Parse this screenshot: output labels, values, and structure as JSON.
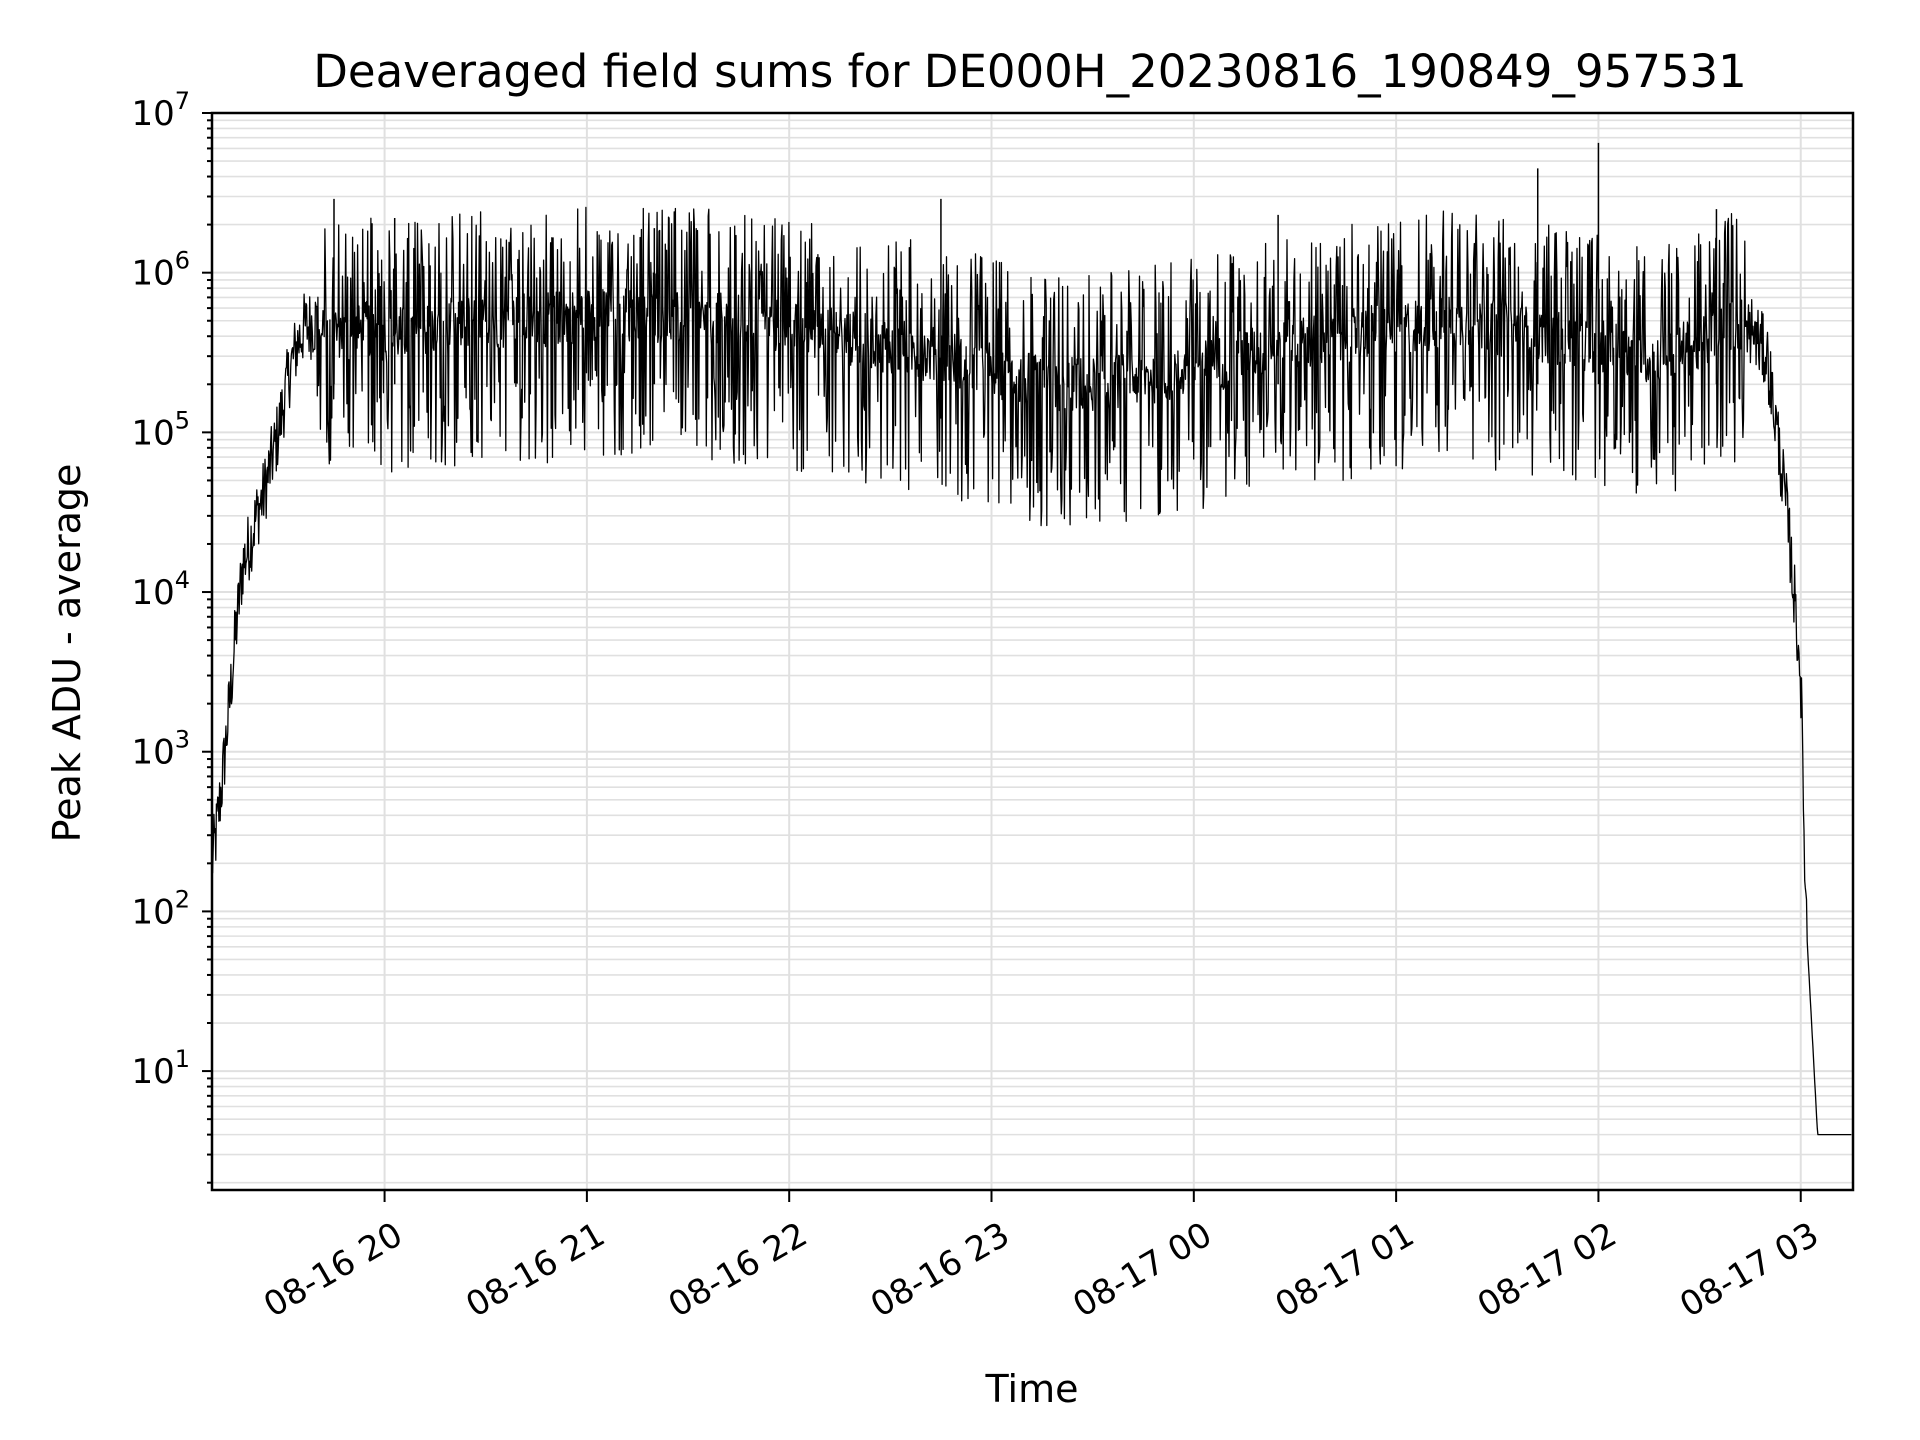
{
  "chart_data": {
    "type": "line",
    "title": "Deaveraged field sums for DE000H_20230816_190849_957531",
    "xlabel": "Time",
    "ylabel": "Peak ADU - average",
    "yscale": "log",
    "ylim": [
      1.8,
      10000000
    ],
    "xlim": [
      "2023-08-16 19:08:49",
      "2023-08-17 03:15:30"
    ],
    "grid": true,
    "grid_color": "#e0e0e0",
    "line_color": "#000000",
    "x_ticks": [
      {
        "label": "08-16 20",
        "time": "2023-08-16 20:00"
      },
      {
        "label": "08-16 21",
        "time": "2023-08-16 21:00"
      },
      {
        "label": "08-16 22",
        "time": "2023-08-16 22:00"
      },
      {
        "label": "08-16 23",
        "time": "2023-08-16 23:00"
      },
      {
        "label": "08-17 00",
        "time": "2023-08-17 00:00"
      },
      {
        "label": "08-17 01",
        "time": "2023-08-17 01:00"
      },
      {
        "label": "08-17 02",
        "time": "2023-08-17 02:00"
      },
      {
        "label": "08-17 03",
        "time": "2023-08-17 03:00"
      }
    ],
    "y_ticks": [
      {
        "base": "10",
        "exp": "1",
        "value": 10
      },
      {
        "base": "10",
        "exp": "2",
        "value": 100
      },
      {
        "base": "10",
        "exp": "3",
        "value": 1000
      },
      {
        "base": "10",
        "exp": "4",
        "value": 10000
      },
      {
        "base": "10",
        "exp": "5",
        "value": 100000
      },
      {
        "base": "10",
        "exp": "6",
        "value": 1000000
      },
      {
        "base": "10",
        "exp": "7",
        "value": 10000000
      }
    ],
    "series": [
      {
        "x": [
          "2023-08-16 19:08:49",
          "2023-08-16 19:10",
          "2023-08-16 19:12",
          "2023-08-16 19:14",
          "2023-08-16 19:16",
          "2023-08-16 19:18",
          "2023-08-16 19:20",
          "2023-08-16 19:22",
          "2023-08-16 19:24",
          "2023-08-16 19:26",
          "2023-08-16 19:28",
          "2023-08-16 19:30",
          "2023-08-16 19:32",
          "2023-08-16 19:34",
          "2023-08-16 19:36",
          "2023-08-16 19:40",
          "2023-08-16 19:45",
          "2023-08-16 19:50",
          "2023-08-16 19:55",
          "2023-08-16 20:00",
          "2023-08-16 20:15",
          "2023-08-16 20:30",
          "2023-08-16 20:45",
          "2023-08-16 21:00",
          "2023-08-16 21:15",
          "2023-08-16 21:30",
          "2023-08-16 21:45",
          "2023-08-16 22:00",
          "2023-08-16 22:15",
          "2023-08-16 22:30",
          "2023-08-16 22:45",
          "2023-08-16 23:00",
          "2023-08-16 23:15",
          "2023-08-16 23:30",
          "2023-08-16 23:45",
          "2023-08-17 00:00",
          "2023-08-17 00:15",
          "2023-08-17 00:30",
          "2023-08-17 00:45",
          "2023-08-17 01:00",
          "2023-08-17 01:15",
          "2023-08-17 01:30",
          "2023-08-17 01:45",
          "2023-08-17 02:00",
          "2023-08-17 02:15",
          "2023-08-17 02:30",
          "2023-08-17 02:40",
          "2023-08-17 02:45",
          "2023-08-17 02:50",
          "2023-08-17 02:53",
          "2023-08-17 02:56",
          "2023-08-17 02:58",
          "2023-08-17 03:00",
          "2023-08-17 03:01",
          "2023-08-17 03:02",
          "2023-08-17 03:05",
          "2023-08-17 03:10",
          "2023-08-17 03:15"
        ],
        "y": [
          200,
          300,
          700,
          2000,
          6000,
          15000,
          20000,
          30000,
          40000,
          60000,
          90000,
          150000,
          250000,
          350000,
          450000,
          500000,
          450000,
          400000,
          450000,
          400000,
          450000,
          500000,
          500000,
          550000,
          550000,
          500000,
          500000,
          450000,
          400000,
          350000,
          300000,
          250000,
          200000,
          200000,
          220000,
          250000,
          300000,
          350000,
          400000,
          450000,
          500000,
          450000,
          400000,
          350000,
          300000,
          350000,
          500000,
          450000,
          300000,
          100000,
          30000,
          10000,
          3000,
          300,
          60,
          4,
          4,
          4
        ],
        "peaks": [
          [
            "2023-08-16 19:45",
            2900000
          ],
          [
            "2023-08-16 20:03",
            2200000
          ],
          [
            "2023-08-16 21:20",
            1900000
          ],
          [
            "2023-08-16 22:45",
            2900000
          ],
          [
            "2023-08-17 00:25",
            2300000
          ],
          [
            "2023-08-17 01:42",
            4500000
          ],
          [
            "2023-08-17 02:00",
            6500000
          ],
          [
            "2023-08-17 02:35",
            2500000
          ]
        ]
      }
    ]
  }
}
